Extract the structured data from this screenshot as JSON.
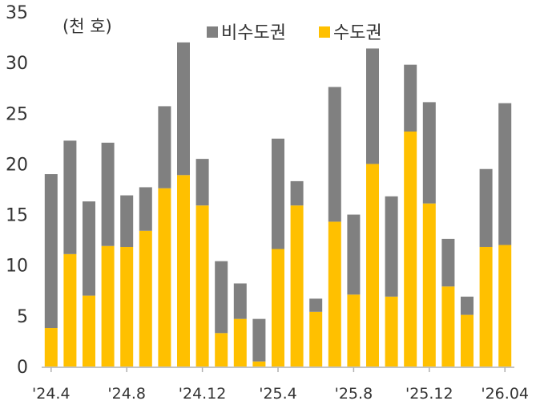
{
  "chart_data": {
    "type": "bar",
    "stacked": true,
    "unit_label": "(천 호)",
    "ylim": [
      0,
      35
    ],
    "yticks": [
      0,
      5,
      10,
      15,
      20,
      25,
      30,
      35
    ],
    "categories": [
      "'24.4",
      "'24.5",
      "'24.6",
      "'24.7",
      "'24.8",
      "'24.9",
      "'24.10",
      "'24.11",
      "'24.12",
      "'25.1",
      "'25.2",
      "'25.3",
      "'25.4",
      "'25.5",
      "'25.6",
      "'25.7",
      "'25.8",
      "'25.9",
      "'25.10",
      "'25.11",
      "'25.12",
      "'26.1",
      "'26.2",
      "'26.3",
      "'26.04"
    ],
    "xtick_labels": [
      {
        "index": 0,
        "label": "'24.4"
      },
      {
        "index": 4,
        "label": "'24.8"
      },
      {
        "index": 8,
        "label": "'24.12"
      },
      {
        "index": 12,
        "label": "'25.4"
      },
      {
        "index": 16,
        "label": "'25.8"
      },
      {
        "index": 20,
        "label": "'25.12"
      },
      {
        "index": 24,
        "label": "'26.04"
      }
    ],
    "series": [
      {
        "name": "수도권",
        "color": "#FFC000",
        "values": [
          3.8,
          11.1,
          7.0,
          11.9,
          11.8,
          13.4,
          17.6,
          18.9,
          15.9,
          3.3,
          4.7,
          0.5,
          11.6,
          15.9,
          5.4,
          14.3,
          7.1,
          20.0,
          6.9,
          23.2,
          16.1,
          7.9,
          5.1,
          11.8,
          12.0
        ]
      },
      {
        "name": "비수도권",
        "color": "#808080",
        "values": [
          15.2,
          11.2,
          9.3,
          10.2,
          5.1,
          4.3,
          8.1,
          13.1,
          4.6,
          7.1,
          3.5,
          4.2,
          10.9,
          2.4,
          1.3,
          13.3,
          7.9,
          11.4,
          9.9,
          6.6,
          10.0,
          4.7,
          1.8,
          7.7,
          14.0
        ]
      }
    ],
    "legend": {
      "placement": "top-center",
      "order": [
        "비수도권",
        "수도권"
      ]
    },
    "grid": false
  }
}
